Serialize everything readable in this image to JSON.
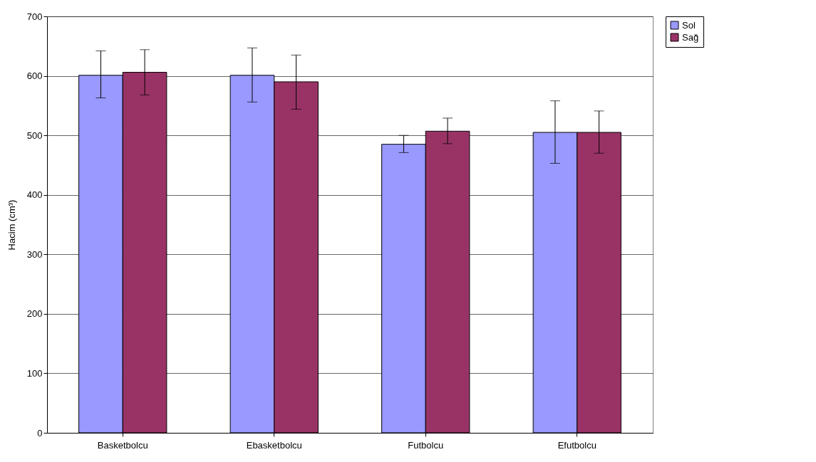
{
  "chart_data": {
    "type": "bar",
    "ylabel": "Hacim (cm³)",
    "categories": [
      "Basketbolcu",
      "Ebasketbolcu",
      "Futbolcu",
      "Efutbolcu"
    ],
    "series": [
      {
        "name": "Sol",
        "color": "#9999ff",
        "values": [
          601,
          601,
          485,
          505
        ],
        "errors": [
          [
            563,
            642
          ],
          [
            556,
            647
          ],
          [
            471,
            500
          ],
          [
            453,
            558
          ]
        ]
      },
      {
        "name": "Sağ",
        "color": "#993366",
        "values": [
          606,
          590,
          507,
          505
        ],
        "errors": [
          [
            568,
            644
          ],
          [
            544,
            635
          ],
          [
            486,
            529
          ],
          [
            470,
            541
          ]
        ]
      }
    ],
    "ylim": [
      0,
      700
    ],
    "yticks": [
      0,
      100,
      200,
      300,
      400,
      500,
      600,
      700
    ],
    "grid": "y",
    "legend": "right"
  }
}
